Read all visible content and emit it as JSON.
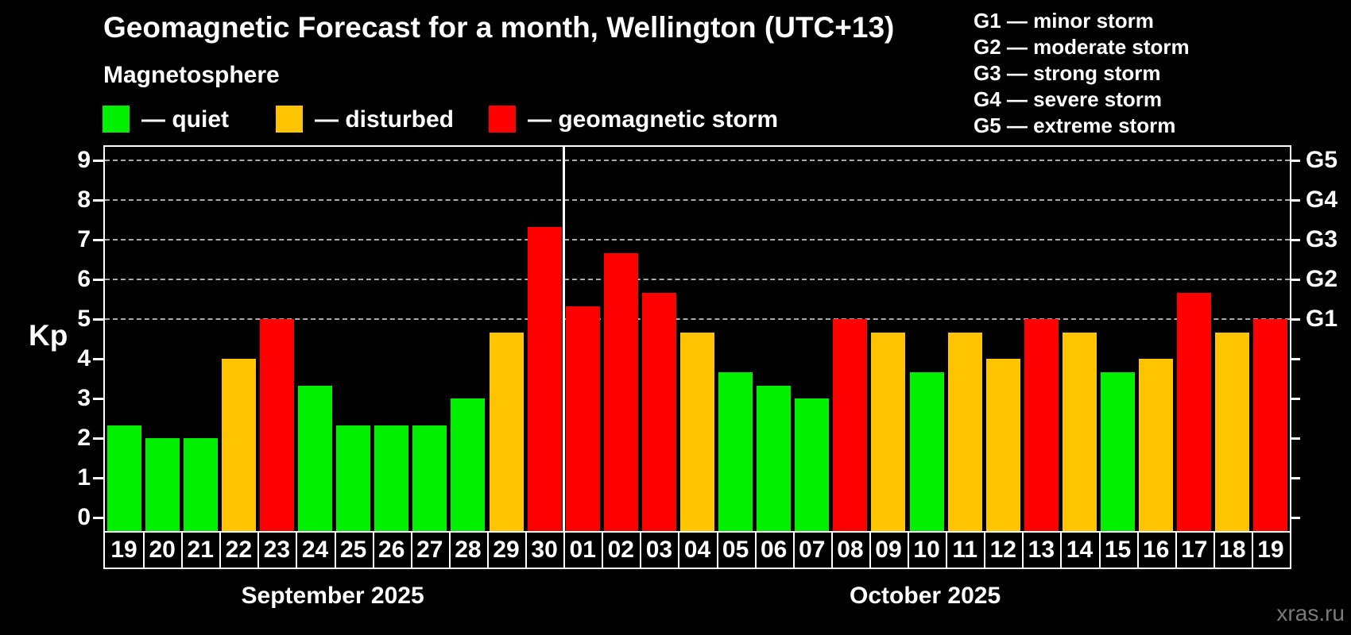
{
  "title": "Geomagnetic Forecast for a month, Wellington (UTC+13)",
  "subtitle": "Magnetosphere",
  "watermark": "xras.ru",
  "legend": {
    "items": [
      {
        "key": "quiet",
        "label": "— quiet",
        "color": "#00f000"
      },
      {
        "key": "disturbed",
        "label": "— disturbed",
        "color": "#ffc400"
      },
      {
        "key": "storm",
        "label": "— geomagnetic storm",
        "color": "#ff0000"
      }
    ]
  },
  "g_scale_legend": {
    "items": [
      "G1 — minor storm",
      "G2 — moderate storm",
      "G3 — strong storm",
      "G4 — severe storm",
      "G5 — extreme storm"
    ]
  },
  "chart_data": {
    "type": "bar",
    "ylabel": "Kp",
    "ylim": [
      -0.34,
      9.38
    ],
    "yticks": [
      0,
      1,
      2,
      3,
      4,
      5,
      6,
      7,
      8,
      9
    ],
    "grid_levels": [
      5,
      6,
      7,
      8,
      9
    ],
    "right_axis_labels": [
      {
        "kp": 5,
        "label": "G1"
      },
      {
        "kp": 6,
        "label": "G2"
      },
      {
        "kp": 7,
        "label": "G3"
      },
      {
        "kp": 8,
        "label": "G4"
      },
      {
        "kp": 9,
        "label": "G5"
      }
    ],
    "months": [
      {
        "label": "September 2025",
        "start": 0,
        "count": 12
      },
      {
        "label": "October 2025",
        "start": 12,
        "count": 19
      }
    ],
    "categories": [
      "19",
      "20",
      "21",
      "22",
      "23",
      "24",
      "25",
      "26",
      "27",
      "28",
      "29",
      "30",
      "01",
      "02",
      "03",
      "04",
      "05",
      "06",
      "07",
      "08",
      "09",
      "10",
      "11",
      "12",
      "13",
      "14",
      "15",
      "16",
      "17",
      "18",
      "19"
    ],
    "values": [
      2.33,
      2,
      2,
      4,
      5,
      3.33,
      2.33,
      2.33,
      2.33,
      3,
      4.67,
      7.33,
      5.33,
      6.67,
      5.67,
      4.67,
      3.67,
      3.33,
      3,
      5,
      4.67,
      3.67,
      4.67,
      4,
      5,
      4.67,
      3.67,
      4,
      5.67,
      4.67,
      5
    ],
    "statuses": [
      "quiet",
      "quiet",
      "quiet",
      "disturbed",
      "storm",
      "quiet",
      "quiet",
      "quiet",
      "quiet",
      "quiet",
      "disturbed",
      "storm",
      "storm",
      "storm",
      "storm",
      "disturbed",
      "quiet",
      "quiet",
      "quiet",
      "storm",
      "disturbed",
      "quiet",
      "disturbed",
      "disturbed",
      "storm",
      "disturbed",
      "quiet",
      "disturbed",
      "storm",
      "disturbed",
      "storm"
    ],
    "colors": {
      "quiet": "#00f000",
      "disturbed": "#ffc400",
      "storm": "#ff0000"
    }
  }
}
